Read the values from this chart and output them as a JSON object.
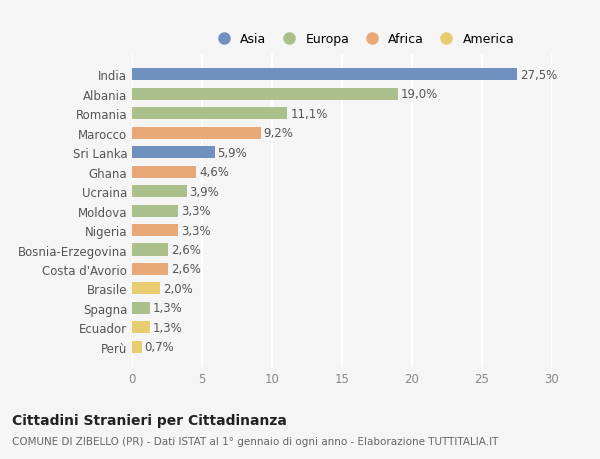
{
  "categories": [
    "India",
    "Albania",
    "Romania",
    "Marocco",
    "Sri Lanka",
    "Ghana",
    "Ucraina",
    "Moldova",
    "Nigeria",
    "Bosnia-Erzegovina",
    "Costa d'Avorio",
    "Brasile",
    "Spagna",
    "Ecuador",
    "Perù"
  ],
  "values": [
    27.5,
    19.0,
    11.1,
    9.2,
    5.9,
    4.6,
    3.9,
    3.3,
    3.3,
    2.6,
    2.6,
    2.0,
    1.3,
    1.3,
    0.7
  ],
  "labels": [
    "27,5%",
    "19,0%",
    "11,1%",
    "9,2%",
    "5,9%",
    "4,6%",
    "3,9%",
    "3,3%",
    "3,3%",
    "2,6%",
    "2,6%",
    "2,0%",
    "1,3%",
    "1,3%",
    "0,7%"
  ],
  "colors": [
    "#7090c0",
    "#aabf8a",
    "#aabf8a",
    "#e8a878",
    "#7090c0",
    "#e8a878",
    "#aabf8a",
    "#aabf8a",
    "#e8a878",
    "#aabf8a",
    "#e8a878",
    "#e8cc70",
    "#aabf8a",
    "#e8cc70",
    "#e8cc70"
  ],
  "legend_labels": [
    "Asia",
    "Europa",
    "Africa",
    "America"
  ],
  "legend_colors": [
    "#7090c0",
    "#aabf8a",
    "#e8a878",
    "#e8cc70"
  ],
  "title": "Cittadini Stranieri per Cittadinanza",
  "subtitle": "COMUNE DI ZIBELLO (PR) - Dati ISTAT al 1° gennaio di ogni anno - Elaborazione TUTTITALIA.IT",
  "xlim": [
    0,
    30
  ],
  "xticks": [
    0,
    5,
    10,
    15,
    20,
    25,
    30
  ],
  "bg_color": "#f5f5f5",
  "bar_height": 0.62,
  "grid_color": "#ffffff",
  "label_fontsize": 8.5,
  "tick_fontsize": 8.5,
  "title_fontsize": 10,
  "subtitle_fontsize": 7.5
}
